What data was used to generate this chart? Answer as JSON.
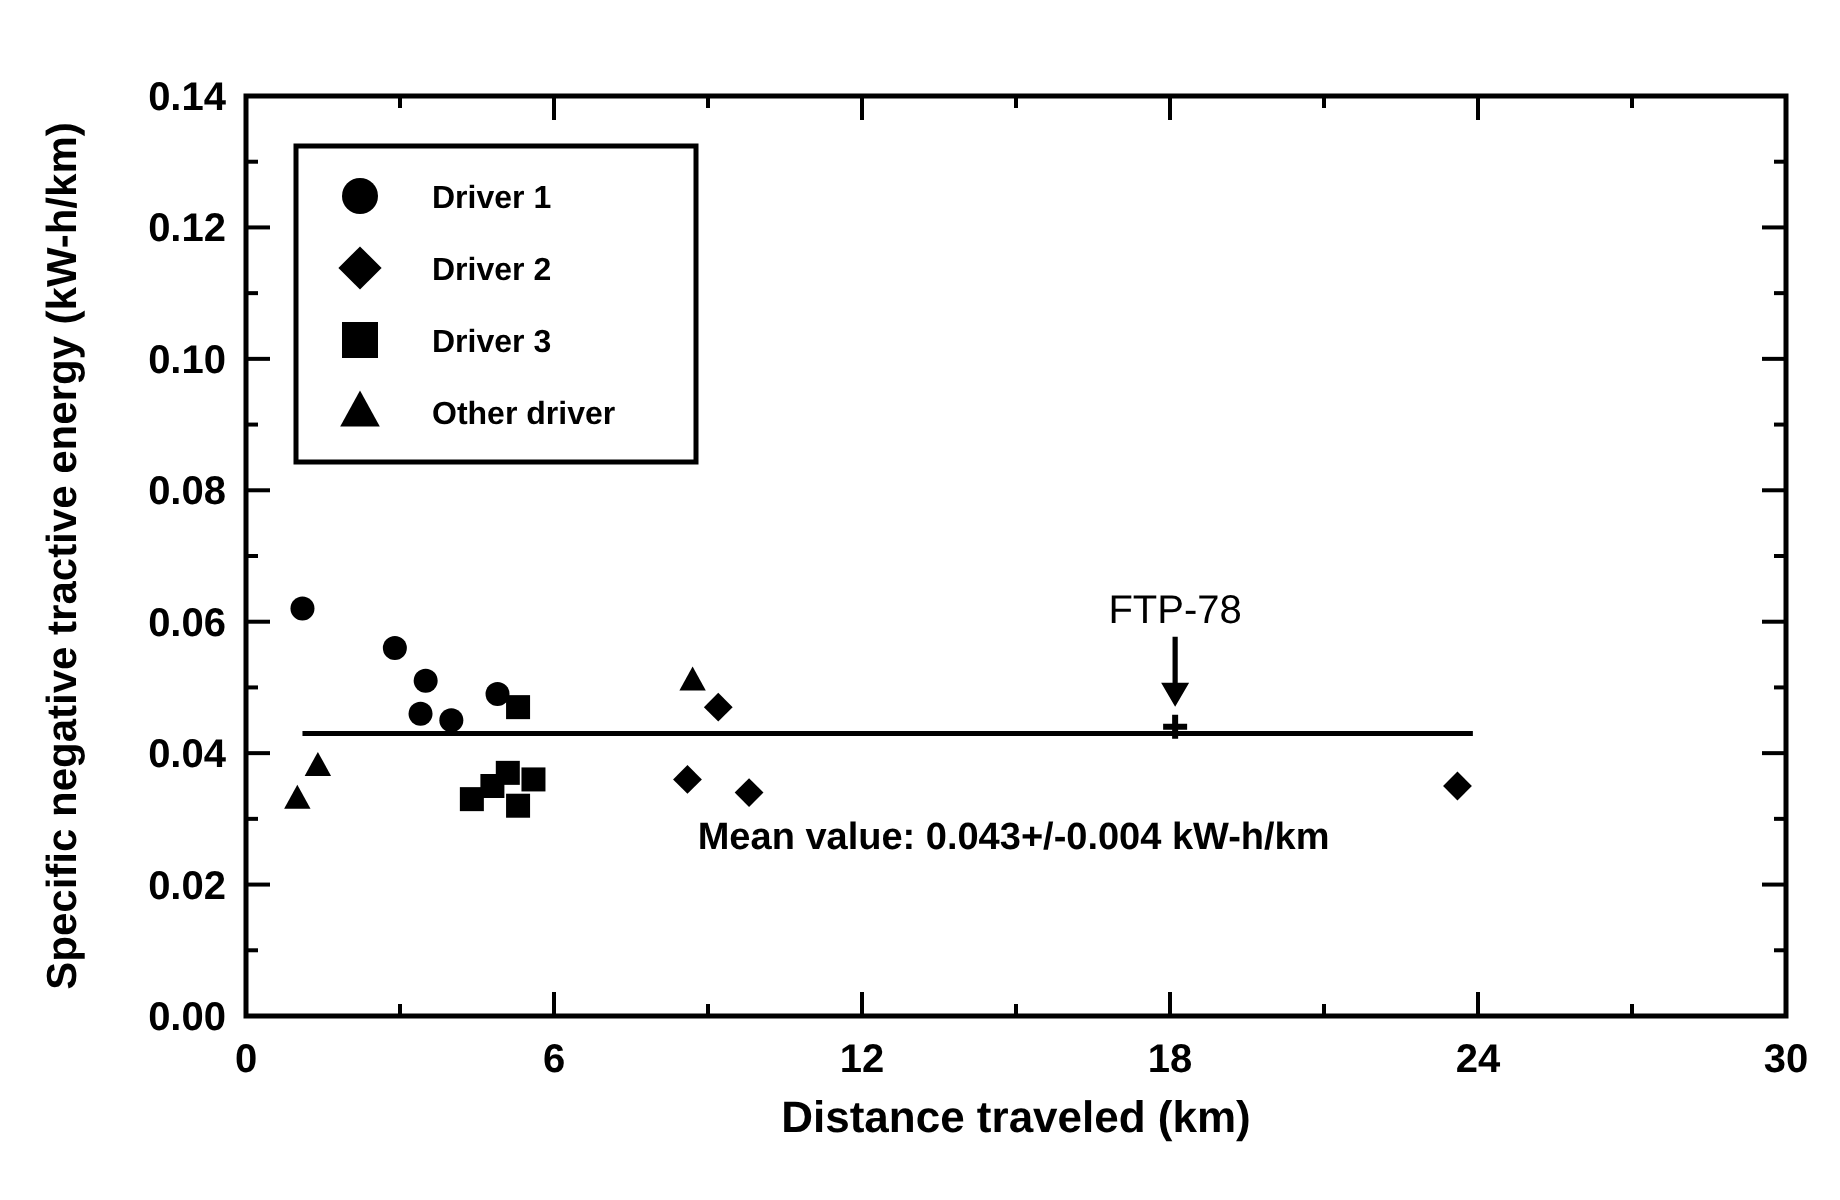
{
  "chart_data": {
    "type": "scatter",
    "xlabel": "Distance traveled (km)",
    "ylabel": "Specific negative tractive energy (kW-h/km)",
    "xlim": [
      0,
      30
    ],
    "xticks": [
      0,
      6,
      12,
      18,
      24,
      30
    ],
    "ylim": [
      0,
      0.14
    ],
    "yticks": [
      {
        "value": 0,
        "label": "0.00"
      },
      {
        "value": 0.02,
        "label": "0.02"
      },
      {
        "value": 0.04,
        "label": "0.04"
      },
      {
        "value": 0.06,
        "label": "0.06"
      },
      {
        "value": 0.08,
        "label": "0.08"
      },
      {
        "value": 0.1,
        "label": "0.10"
      },
      {
        "value": 0.12,
        "label": "0.12"
      },
      {
        "value": 0.14,
        "label": "0.14"
      }
    ],
    "grid": false,
    "legend": "top left",
    "series": [
      {
        "name": "Driver 1",
        "color": "#000000",
        "marker": "circle",
        "x": [
          1.1,
          2.9,
          3.5,
          3.4,
          4.0,
          4.9
        ],
        "values": [
          0.062,
          0.056,
          0.051,
          0.046,
          0.045,
          0.049
        ]
      },
      {
        "name": "Driver 2",
        "color": "#000000",
        "marker": "diamond",
        "x": [
          9.2,
          8.6,
          9.8,
          23.6
        ],
        "values": [
          0.047,
          0.036,
          0.034,
          0.035
        ]
      },
      {
        "name": "Driver 3",
        "color": "#000000",
        "marker": "square",
        "x": [
          5.3,
          4.4,
          4.8,
          5.1,
          5.6,
          5.3
        ],
        "values": [
          0.047,
          0.033,
          0.035,
          0.037,
          0.036,
          0.032
        ]
      },
      {
        "name": "Other driver",
        "color": "#000000",
        "marker": "triangle",
        "x": [
          1.4,
          1.0,
          8.7
        ],
        "values": [
          0.038,
          0.033,
          0.051
        ]
      },
      {
        "color": "#000000",
        "marker": "cross",
        "x": [
          18.1
        ],
        "values": [
          0.044
        ]
      },
      {
        "type": "line",
        "color": "#000000",
        "marker": "none",
        "x": [
          1.1,
          23.9
        ],
        "values": [
          0.043,
          0.043
        ]
      }
    ],
    "annotations": [
      {
        "text": "FTP-78",
        "x": 18.1,
        "y": 0.044
      },
      {
        "text": "Mean value: 0.043+/-0.004 kW-h/km",
        "x": 8.8,
        "y": 0.043
      }
    ]
  }
}
